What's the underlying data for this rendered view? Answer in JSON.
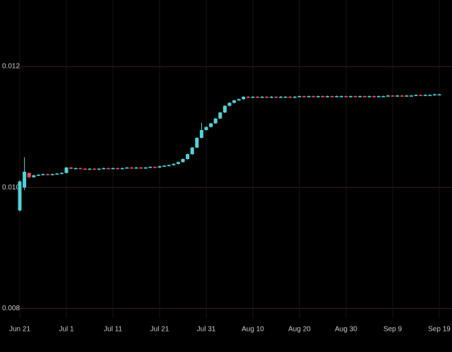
{
  "chart_data": {
    "type": "candlestick",
    "x": [
      "Jun 21",
      "Jun 22",
      "Jun 23",
      "Jun 24",
      "Jun 25",
      "Jun 26",
      "Jun 27",
      "Jun 28",
      "Jun 29",
      "Jun 30",
      "Jul 1",
      "Jul 2",
      "Jul 3",
      "Jul 4",
      "Jul 5",
      "Jul 6",
      "Jul 7",
      "Jul 8",
      "Jul 9",
      "Jul 10",
      "Jul 11",
      "Jul 12",
      "Jul 13",
      "Jul 14",
      "Jul 15",
      "Jul 16",
      "Jul 17",
      "Jul 18",
      "Jul 19",
      "Jul 20",
      "Jul 21",
      "Jul 22",
      "Jul 23",
      "Jul 24",
      "Jul 25",
      "Jul 26",
      "Jul 27",
      "Jul 28",
      "Jul 29",
      "Jul 30",
      "Jul 31",
      "Aug 1",
      "Aug 2",
      "Aug 3",
      "Aug 4",
      "Aug 5",
      "Aug 6",
      "Aug 7",
      "Aug 8",
      "Aug 9",
      "Aug 10",
      "Aug 11",
      "Aug 12",
      "Aug 13",
      "Aug 14",
      "Aug 15",
      "Aug 16",
      "Aug 17",
      "Aug 18",
      "Aug 19",
      "Aug 20",
      "Aug 21",
      "Aug 22",
      "Aug 23",
      "Aug 24",
      "Aug 25",
      "Aug 26",
      "Aug 27",
      "Aug 28",
      "Aug 29",
      "Aug 30",
      "Aug 31",
      "Sep 1",
      "Sep 2",
      "Sep 3",
      "Sep 4",
      "Sep 5",
      "Sep 6",
      "Sep 7",
      "Sep 8",
      "Sep 9",
      "Sep 10",
      "Sep 11",
      "Sep 12",
      "Sep 13",
      "Sep 14",
      "Sep 15",
      "Sep 16",
      "Sep 17",
      "Sep 18",
      "Sep 19"
    ],
    "open": [
      0.00962,
      0.01,
      0.01024,
      0.01017,
      0.0102,
      0.01021,
      0.01022,
      0.01021,
      0.01022,
      0.01023,
      0.01024,
      0.01033,
      0.01031,
      0.01032,
      0.01031,
      0.0103,
      0.01031,
      0.0103,
      0.01031,
      0.01032,
      0.01031,
      0.01032,
      0.01031,
      0.01032,
      0.01033,
      0.01032,
      0.01033,
      0.01032,
      0.01033,
      0.01034,
      0.01033,
      0.01035,
      0.01036,
      0.01037,
      0.01039,
      0.01042,
      0.01047,
      0.01055,
      0.01066,
      0.01082,
      0.01095,
      0.011,
      0.01106,
      0.01114,
      0.01124,
      0.01135,
      0.0114,
      0.01144,
      0.01146,
      0.0115,
      0.01149,
      0.0115,
      0.01149,
      0.0115,
      0.01149,
      0.0115,
      0.01149,
      0.0115,
      0.0115,
      0.01149,
      0.0115,
      0.01151,
      0.0115,
      0.01151,
      0.0115,
      0.01151,
      0.0115,
      0.01151,
      0.0115,
      0.01151,
      0.01151,
      0.0115,
      0.01151,
      0.0115,
      0.01151,
      0.0115,
      0.01151,
      0.0115,
      0.01151,
      0.01151,
      0.01152,
      0.01151,
      0.01152,
      0.01151,
      0.01152,
      0.01152,
      0.01153,
      0.01152,
      0.01153,
      0.01153,
      0.01154
    ],
    "high": [
      0.01012,
      0.0105,
      0.01025,
      0.01021,
      0.01022,
      0.01023,
      0.01023,
      0.01023,
      0.01024,
      0.01025,
      0.01034,
      0.01034,
      0.01033,
      0.01033,
      0.01032,
      0.01032,
      0.01032,
      0.01032,
      0.01033,
      0.01033,
      0.01033,
      0.01033,
      0.01033,
      0.01034,
      0.01034,
      0.01034,
      0.01034,
      0.01034,
      0.01035,
      0.01035,
      0.01036,
      0.01037,
      0.01038,
      0.0104,
      0.01043,
      0.01048,
      0.01056,
      0.01067,
      0.01083,
      0.01107,
      0.01101,
      0.01107,
      0.01115,
      0.01125,
      0.01136,
      0.01141,
      0.01145,
      0.01147,
      0.01151,
      0.01151,
      0.01151,
      0.01151,
      0.01151,
      0.01151,
      0.01151,
      0.01151,
      0.01151,
      0.01151,
      0.01151,
      0.01151,
      0.01152,
      0.01152,
      0.01152,
      0.01152,
      0.01152,
      0.01152,
      0.01152,
      0.01152,
      0.01152,
      0.01152,
      0.01152,
      0.01152,
      0.01152,
      0.01152,
      0.01152,
      0.01152,
      0.01152,
      0.01152,
      0.01152,
      0.01153,
      0.01153,
      0.01153,
      0.01153,
      0.01153,
      0.01153,
      0.01154,
      0.01154,
      0.01154,
      0.01154,
      0.01155,
      0.01155
    ],
    "low": [
      0.0096,
      0.00996,
      0.01015,
      0.01016,
      0.01019,
      0.0102,
      0.0102,
      0.0102,
      0.01021,
      0.01022,
      0.01023,
      0.0103,
      0.0103,
      0.0103,
      0.01029,
      0.01029,
      0.01029,
      0.01029,
      0.0103,
      0.0103,
      0.0103,
      0.0103,
      0.0103,
      0.01031,
      0.01031,
      0.01031,
      0.01031,
      0.01031,
      0.01032,
      0.01032,
      0.01032,
      0.01034,
      0.01035,
      0.01036,
      0.01038,
      0.01041,
      0.01046,
      0.01054,
      0.01065,
      0.01081,
      0.01094,
      0.01099,
      0.01105,
      0.01113,
      0.01123,
      0.01134,
      0.01139,
      0.01143,
      0.01145,
      0.01148,
      0.01148,
      0.01148,
      0.01148,
      0.01148,
      0.01148,
      0.01148,
      0.01148,
      0.01149,
      0.01148,
      0.01148,
      0.01149,
      0.01149,
      0.01149,
      0.01149,
      0.01149,
      0.01149,
      0.01149,
      0.01149,
      0.01149,
      0.0115,
      0.01149,
      0.01149,
      0.01149,
      0.01149,
      0.01149,
      0.01149,
      0.01149,
      0.01149,
      0.0115,
      0.0115,
      0.0115,
      0.0115,
      0.0115,
      0.0115,
      0.01151,
      0.01151,
      0.01151,
      0.01151,
      0.01152,
      0.01152,
      0.01153
    ],
    "close": [
      0.0101,
      0.01026,
      0.01017,
      0.0102,
      0.01021,
      0.01022,
      0.01021,
      0.01022,
      0.01023,
      0.01024,
      0.01033,
      0.01031,
      0.01032,
      0.01031,
      0.0103,
      0.01031,
      0.0103,
      0.01031,
      0.01032,
      0.01031,
      0.01032,
      0.01031,
      0.01032,
      0.01033,
      0.01032,
      0.01033,
      0.01032,
      0.01033,
      0.01034,
      0.01033,
      0.01035,
      0.01036,
      0.01037,
      0.01039,
      0.01042,
      0.01047,
      0.01055,
      0.01066,
      0.01082,
      0.01095,
      0.011,
      0.01106,
      0.01114,
      0.01124,
      0.01135,
      0.0114,
      0.01144,
      0.01146,
      0.0115,
      0.01149,
      0.0115,
      0.01149,
      0.0115,
      0.01149,
      0.0115,
      0.01149,
      0.0115,
      0.0115,
      0.01149,
      0.0115,
      0.01151,
      0.0115,
      0.01151,
      0.0115,
      0.01151,
      0.0115,
      0.01151,
      0.0115,
      0.01151,
      0.01151,
      0.0115,
      0.01151,
      0.0115,
      0.01151,
      0.0115,
      0.01151,
      0.0115,
      0.01151,
      0.01151,
      0.01152,
      0.01151,
      0.01152,
      0.01151,
      0.01152,
      0.01152,
      0.01153,
      0.01152,
      0.01153,
      0.01153,
      0.01154,
      0.01154
    ],
    "up_color": "#4fd3d8",
    "down_color": "#ef4a5a",
    "ylim": [
      0.00784,
      0.0131
    ],
    "yticks": [
      0.008,
      {
        "value": 0.01,
        "label": "0.010"
      },
      0.012
    ],
    "xticks": [
      "Jun 21",
      "Jul 1",
      "Jul 11",
      "Jul 21",
      "Jul 31",
      "Aug 10",
      "Aug 20",
      "Aug 30",
      "Sep 9",
      "Sep 19"
    ],
    "grid": true
  }
}
